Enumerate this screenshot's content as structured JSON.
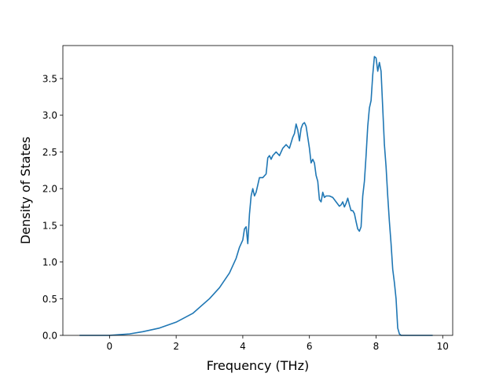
{
  "chart_data": {
    "type": "line",
    "title": "",
    "xlabel": "Frequency (THz)",
    "ylabel": "Density of States",
    "xlim": [
      -1.4,
      10.3
    ],
    "ylim": [
      0.0,
      3.95
    ],
    "x_ticks": [
      0,
      2,
      4,
      6,
      8,
      10
    ],
    "x_tick_labels": [
      "0",
      "2",
      "4",
      "6",
      "8",
      "10"
    ],
    "y_ticks": [
      0.0,
      0.5,
      1.0,
      1.5,
      2.0,
      2.5,
      3.0,
      3.5
    ],
    "y_tick_labels": [
      "0.0",
      "0.5",
      "1.0",
      "1.5",
      "2.0",
      "2.5",
      "3.0",
      "3.5"
    ],
    "grid": false,
    "line_color": "#1f77b4",
    "series": [
      {
        "x": [
          -0.9,
          -0.5,
          0.0,
          0.3,
          0.6,
          1.0,
          1.5,
          2.0,
          2.5,
          3.0,
          3.3,
          3.6,
          3.8,
          3.9,
          4.0,
          4.05,
          4.1,
          4.15,
          4.2,
          4.25,
          4.3,
          4.35,
          4.4,
          4.5,
          4.6,
          4.7,
          4.75,
          4.8,
          4.85,
          4.9,
          5.0,
          5.1,
          5.2,
          5.3,
          5.4,
          5.5,
          5.55,
          5.6,
          5.65,
          5.7,
          5.75,
          5.8,
          5.85,
          5.9,
          6.0,
          6.05,
          6.1,
          6.15,
          6.2,
          6.25,
          6.3,
          6.35,
          6.4,
          6.45,
          6.5,
          6.55,
          6.6,
          6.7,
          6.8,
          6.9,
          6.95,
          7.0,
          7.05,
          7.1,
          7.15,
          7.2,
          7.25,
          7.3,
          7.35,
          7.4,
          7.45,
          7.5,
          7.55,
          7.6,
          7.65,
          7.7,
          7.75,
          7.8,
          7.85,
          7.9,
          7.95,
          8.0,
          8.05,
          8.1,
          8.15,
          8.2,
          8.25,
          8.3,
          8.35,
          8.4,
          8.45,
          8.5,
          8.55,
          8.6,
          8.65,
          8.7,
          8.75,
          8.8,
          8.85,
          8.9,
          9.0,
          9.3,
          9.7
        ],
        "y": [
          0.0,
          0.0,
          0.0,
          0.01,
          0.02,
          0.05,
          0.1,
          0.18,
          0.3,
          0.5,
          0.65,
          0.85,
          1.05,
          1.2,
          1.3,
          1.45,
          1.48,
          1.25,
          1.65,
          1.9,
          2.0,
          1.9,
          1.95,
          2.15,
          2.15,
          2.2,
          2.42,
          2.45,
          2.4,
          2.45,
          2.5,
          2.45,
          2.55,
          2.6,
          2.55,
          2.7,
          2.75,
          2.88,
          2.8,
          2.65,
          2.82,
          2.88,
          2.9,
          2.85,
          2.55,
          2.35,
          2.4,
          2.35,
          2.18,
          2.1,
          1.85,
          1.82,
          1.95,
          1.88,
          1.9,
          1.9,
          1.9,
          1.88,
          1.82,
          1.76,
          1.78,
          1.82,
          1.75,
          1.8,
          1.87,
          1.78,
          1.7,
          1.7,
          1.66,
          1.55,
          1.45,
          1.42,
          1.48,
          1.9,
          2.1,
          2.45,
          2.85,
          3.1,
          3.2,
          3.55,
          3.8,
          3.78,
          3.6,
          3.72,
          3.6,
          3.1,
          2.6,
          2.3,
          1.9,
          1.55,
          1.25,
          0.9,
          0.72,
          0.5,
          0.1,
          0.02,
          0.0,
          0.0,
          0.0,
          0.0,
          0.0,
          0.0,
          0.0
        ]
      }
    ]
  }
}
